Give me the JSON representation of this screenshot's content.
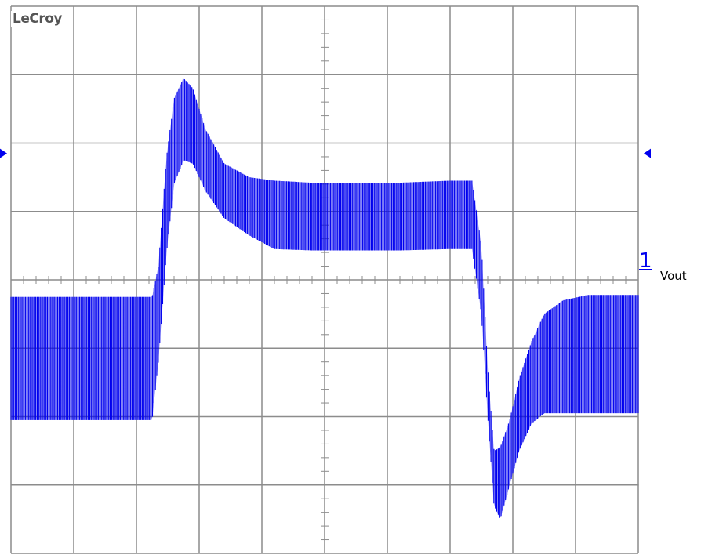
{
  "brand": {
    "name": "LeCroy"
  },
  "channel": {
    "number": "1",
    "label": "Vout",
    "color": "#0000ee"
  },
  "chart_data": {
    "type": "line",
    "title": "",
    "xlabel": "",
    "ylabel": "",
    "xlim": [
      0,
      10
    ],
    "ylim": [
      -4,
      4
    ],
    "grid": true,
    "x_divisions": 10,
    "y_divisions": 8,
    "series": [
      {
        "trace": "envelope_upper",
        "x": [
          0,
          2.25,
          2.35,
          2.48,
          2.6,
          2.75,
          2.9,
          3.1,
          3.4,
          3.8,
          4.2,
          4.8,
          5.5,
          6.2,
          7.0,
          7.35,
          7.5,
          7.6,
          7.7,
          7.8,
          7.95,
          8.1,
          8.3,
          8.5,
          8.8,
          9.2,
          9.6,
          10
        ],
        "y": [
          -0.25,
          -0.25,
          0.2,
          1.8,
          2.65,
          2.95,
          2.8,
          2.2,
          1.7,
          1.5,
          1.45,
          1.42,
          1.42,
          1.42,
          1.45,
          1.45,
          0.5,
          -1.3,
          -2.5,
          -2.45,
          -2.05,
          -1.45,
          -0.9,
          -0.5,
          -0.3,
          -0.22,
          -0.22,
          -0.22
        ]
      },
      {
        "trace": "envelope_lower",
        "x": [
          0,
          2.25,
          2.35,
          2.48,
          2.6,
          2.75,
          2.9,
          3.1,
          3.4,
          3.8,
          4.2,
          4.8,
          5.5,
          6.2,
          7.0,
          7.35,
          7.5,
          7.6,
          7.7,
          7.8,
          7.95,
          8.1,
          8.3,
          8.5,
          8.8,
          9.2,
          9.6,
          10
        ],
        "y": [
          -2.05,
          -2.05,
          -1.2,
          0.4,
          1.4,
          1.75,
          1.7,
          1.3,
          0.9,
          0.65,
          0.45,
          0.43,
          0.43,
          0.43,
          0.45,
          0.45,
          -0.5,
          -2.0,
          -3.3,
          -3.5,
          -3.0,
          -2.5,
          -2.1,
          -1.95,
          -1.95,
          -1.95,
          -1.95,
          -1.95
        ]
      }
    ],
    "markers": {
      "left_arrow_y": 1.85,
      "right_arrow_y": 1.85
    }
  }
}
